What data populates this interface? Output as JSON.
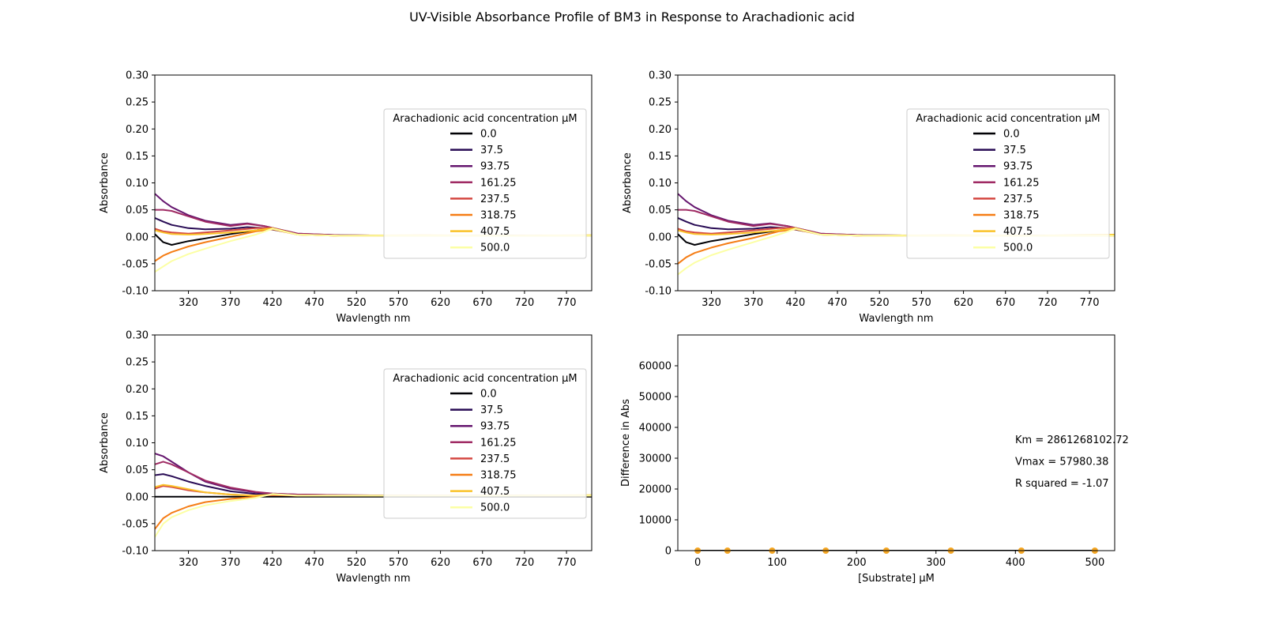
{
  "figure": {
    "title": "UV-Visible Absorbance Profile of BM3 in Response to Arachadionic acid"
  },
  "chart_data": [
    {
      "type": "line",
      "panel": "top-left",
      "xlabel": "Wavlength nm",
      "ylabel": "Absorbance",
      "xlim": [
        280,
        800
      ],
      "ylim": [
        -0.1,
        0.3
      ],
      "xticks": [
        "320",
        "370",
        "420",
        "470",
        "520",
        "570",
        "620",
        "670",
        "720",
        "770"
      ],
      "yticks": [
        "-0.10",
        "-0.05",
        "0.00",
        "0.05",
        "0.10",
        "0.15",
        "0.20",
        "0.25",
        "0.30"
      ],
      "legend": {
        "title": "Arachadionic acid concentration μM",
        "placement": "right"
      },
      "series": [
        {
          "name": "0.0",
          "color": "#000004",
          "x": [
            280,
            290,
            300,
            320,
            340,
            370,
            400,
            420,
            450,
            500,
            600,
            700,
            800
          ],
          "y": [
            0.005,
            -0.01,
            -0.015,
            -0.008,
            -0.003,
            0.005,
            0.012,
            0.016,
            0.005,
            0.002,
            0.002,
            0.002,
            0.002
          ]
        },
        {
          "name": "37.5",
          "color": "#280b54",
          "x": [
            280,
            290,
            300,
            320,
            340,
            370,
            390,
            410,
            450,
            500,
            600,
            700,
            800
          ],
          "y": [
            0.035,
            0.028,
            0.022,
            0.016,
            0.014,
            0.015,
            0.018,
            0.016,
            0.005,
            0.003,
            0.002,
            0.002,
            0.002
          ]
        },
        {
          "name": "93.75",
          "color": "#65156e",
          "x": [
            280,
            290,
            300,
            320,
            340,
            370,
            390,
            410,
            450,
            500,
            600,
            700,
            800
          ],
          "y": [
            0.08,
            0.066,
            0.055,
            0.04,
            0.03,
            0.022,
            0.025,
            0.02,
            0.006,
            0.003,
            0.002,
            0.002,
            0.002
          ]
        },
        {
          "name": "161.25",
          "color": "#9f2a63",
          "x": [
            280,
            290,
            300,
            320,
            340,
            370,
            390,
            410,
            450,
            500,
            600,
            700,
            800
          ],
          "y": [
            0.05,
            0.05,
            0.048,
            0.038,
            0.028,
            0.02,
            0.024,
            0.02,
            0.006,
            0.003,
            0.002,
            0.002,
            0.002
          ]
        },
        {
          "name": "237.5",
          "color": "#d44842",
          "x": [
            280,
            290,
            300,
            320,
            340,
            370,
            400,
            420,
            450,
            500,
            600,
            700,
            800
          ],
          "y": [
            0.015,
            0.01,
            0.008,
            0.006,
            0.008,
            0.012,
            0.016,
            0.016,
            0.004,
            0.002,
            0.002,
            0.002,
            0.002
          ]
        },
        {
          "name": "318.75",
          "color": "#f57d15",
          "x": [
            280,
            290,
            300,
            320,
            340,
            370,
            400,
            420,
            450,
            500,
            600,
            700,
            800
          ],
          "y": [
            -0.045,
            -0.035,
            -0.028,
            -0.018,
            -0.01,
            0.0,
            0.01,
            0.014,
            0.004,
            0.002,
            0.002,
            0.002,
            0.002
          ]
        },
        {
          "name": "407.5",
          "color": "#fac228",
          "x": [
            280,
            290,
            300,
            320,
            340,
            370,
            400,
            420,
            450,
            500,
            600,
            700,
            800
          ],
          "y": [
            0.012,
            0.008,
            0.005,
            0.004,
            0.005,
            0.008,
            0.012,
            0.016,
            0.004,
            0.002,
            0.003,
            0.002,
            0.003
          ]
        },
        {
          "name": "500.0",
          "color": "#fcffa4",
          "x": [
            280,
            290,
            300,
            320,
            340,
            370,
            400,
            420,
            450,
            500,
            600,
            700,
            800
          ],
          "y": [
            -0.065,
            -0.055,
            -0.045,
            -0.032,
            -0.022,
            -0.008,
            0.004,
            0.015,
            0.004,
            0.002,
            0.002,
            0.002,
            0.002
          ]
        }
      ]
    },
    {
      "type": "line",
      "panel": "top-right",
      "xlabel": "Wavlength nm",
      "ylabel": "Absorbance",
      "xlim": [
        280,
        800
      ],
      "ylim": [
        -0.1,
        0.3
      ],
      "xticks": [
        "320",
        "370",
        "420",
        "470",
        "520",
        "570",
        "620",
        "670",
        "720",
        "770"
      ],
      "yticks": [
        "-0.10",
        "-0.05",
        "0.00",
        "0.05",
        "0.10",
        "0.15",
        "0.20",
        "0.25",
        "0.30"
      ],
      "legend": {
        "title": "Arachadionic acid concentration μM",
        "placement": "right"
      },
      "series": [
        {
          "name": "0.0",
          "color": "#000004",
          "x": [
            280,
            290,
            300,
            320,
            340,
            370,
            400,
            420,
            450,
            500,
            600,
            700,
            800
          ],
          "y": [
            0.005,
            -0.01,
            -0.015,
            -0.008,
            -0.003,
            0.005,
            0.012,
            0.016,
            0.005,
            0.002,
            0.002,
            0.002,
            0.002
          ]
        },
        {
          "name": "37.5",
          "color": "#280b54",
          "x": [
            280,
            290,
            300,
            320,
            340,
            370,
            390,
            410,
            450,
            500,
            600,
            700,
            800
          ],
          "y": [
            0.035,
            0.028,
            0.022,
            0.016,
            0.014,
            0.015,
            0.018,
            0.016,
            0.005,
            0.003,
            0.002,
            0.002,
            0.002
          ]
        },
        {
          "name": "93.75",
          "color": "#65156e",
          "x": [
            280,
            290,
            300,
            320,
            340,
            370,
            390,
            410,
            450,
            500,
            600,
            700,
            800
          ],
          "y": [
            0.08,
            0.066,
            0.055,
            0.04,
            0.03,
            0.022,
            0.025,
            0.02,
            0.006,
            0.003,
            0.002,
            0.002,
            0.002
          ]
        },
        {
          "name": "161.25",
          "color": "#9f2a63",
          "x": [
            280,
            290,
            300,
            320,
            340,
            370,
            390,
            410,
            450,
            500,
            600,
            700,
            800
          ],
          "y": [
            0.05,
            0.05,
            0.048,
            0.038,
            0.028,
            0.02,
            0.024,
            0.02,
            0.006,
            0.003,
            0.002,
            0.002,
            0.002
          ]
        },
        {
          "name": "237.5",
          "color": "#d44842",
          "x": [
            280,
            290,
            300,
            320,
            340,
            370,
            400,
            420,
            450,
            500,
            600,
            700,
            800
          ],
          "y": [
            0.015,
            0.01,
            0.008,
            0.006,
            0.008,
            0.012,
            0.016,
            0.016,
            0.004,
            0.002,
            0.002,
            0.002,
            0.002
          ]
        },
        {
          "name": "318.75",
          "color": "#f57d15",
          "x": [
            280,
            290,
            300,
            320,
            340,
            370,
            400,
            420,
            450,
            500,
            600,
            700,
            800
          ],
          "y": [
            -0.05,
            -0.038,
            -0.03,
            -0.02,
            -0.012,
            -0.002,
            0.01,
            0.014,
            0.004,
            0.002,
            0.002,
            0.002,
            0.002
          ]
        },
        {
          "name": "407.5",
          "color": "#fac228",
          "x": [
            280,
            290,
            300,
            320,
            340,
            370,
            400,
            420,
            450,
            500,
            600,
            700,
            800
          ],
          "y": [
            0.012,
            0.008,
            0.005,
            0.004,
            0.005,
            0.008,
            0.012,
            0.016,
            0.004,
            0.002,
            0.003,
            0.002,
            0.004
          ]
        },
        {
          "name": "500.0",
          "color": "#fcffa4",
          "x": [
            280,
            290,
            300,
            320,
            340,
            370,
            400,
            420,
            450,
            500,
            600,
            700,
            800
          ],
          "y": [
            -0.07,
            -0.058,
            -0.048,
            -0.034,
            -0.024,
            -0.01,
            0.004,
            0.015,
            0.004,
            0.002,
            0.002,
            0.002,
            0.002
          ]
        }
      ]
    },
    {
      "type": "line",
      "panel": "bottom-left",
      "xlabel": "Wavlength nm",
      "ylabel": "Absorbance",
      "xlim": [
        280,
        800
      ],
      "ylim": [
        -0.1,
        0.3
      ],
      "xticks": [
        "320",
        "370",
        "420",
        "470",
        "520",
        "570",
        "620",
        "670",
        "720",
        "770"
      ],
      "yticks": [
        "-0.10",
        "-0.05",
        "0.00",
        "0.05",
        "0.10",
        "0.15",
        "0.20",
        "0.25",
        "0.30"
      ],
      "legend": {
        "title": "Arachadionic acid concentration μM",
        "placement": "right"
      },
      "series": [
        {
          "name": "0.0",
          "color": "#000004",
          "x": [
            280,
            400,
            500,
            600,
            700,
            800
          ],
          "y": [
            0.0,
            0.0,
            0.0,
            0.0,
            0.0,
            0.0
          ]
        },
        {
          "name": "37.5",
          "color": "#280b54",
          "x": [
            280,
            290,
            300,
            320,
            340,
            370,
            400,
            420,
            450,
            500,
            600,
            700,
            800
          ],
          "y": [
            0.04,
            0.042,
            0.038,
            0.028,
            0.02,
            0.01,
            0.005,
            0.004,
            0.002,
            0.002,
            0.002,
            0.002,
            0.002
          ]
        },
        {
          "name": "93.75",
          "color": "#65156e",
          "x": [
            280,
            290,
            300,
            320,
            340,
            370,
            400,
            420,
            450,
            500,
            600,
            700,
            800
          ],
          "y": [
            0.08,
            0.075,
            0.065,
            0.045,
            0.028,
            0.015,
            0.008,
            0.006,
            0.004,
            0.003,
            0.002,
            0.002,
            0.002
          ]
        },
        {
          "name": "161.25",
          "color": "#9f2a63",
          "x": [
            280,
            290,
            300,
            320,
            340,
            370,
            400,
            420,
            450,
            500,
            600,
            700,
            800
          ],
          "y": [
            0.06,
            0.065,
            0.06,
            0.045,
            0.03,
            0.017,
            0.009,
            0.006,
            0.004,
            0.003,
            0.002,
            0.002,
            0.002
          ]
        },
        {
          "name": "237.5",
          "color": "#d44842",
          "x": [
            280,
            290,
            300,
            320,
            340,
            370,
            400,
            420,
            450,
            500,
            600,
            700,
            800
          ],
          "y": [
            0.015,
            0.02,
            0.018,
            0.012,
            0.008,
            0.004,
            0.002,
            0.003,
            0.002,
            0.002,
            0.002,
            0.002,
            0.002
          ]
        },
        {
          "name": "318.75",
          "color": "#f57d15",
          "x": [
            280,
            290,
            300,
            320,
            340,
            370,
            400,
            420,
            450,
            500,
            600,
            700,
            800
          ],
          "y": [
            -0.06,
            -0.04,
            -0.03,
            -0.018,
            -0.01,
            -0.004,
            0.0,
            0.004,
            0.002,
            0.002,
            0.002,
            0.002,
            0.002
          ]
        },
        {
          "name": "407.5",
          "color": "#fac228",
          "x": [
            280,
            290,
            300,
            320,
            340,
            370,
            400,
            420,
            450,
            500,
            600,
            700,
            800
          ],
          "y": [
            0.018,
            0.022,
            0.02,
            0.014,
            0.008,
            0.004,
            0.002,
            0.004,
            0.002,
            0.002,
            0.002,
            0.002,
            0.003
          ]
        },
        {
          "name": "500.0",
          "color": "#fcffa4",
          "x": [
            280,
            290,
            300,
            320,
            340,
            370,
            400,
            420,
            450,
            500,
            600,
            700,
            800
          ],
          "y": [
            -0.075,
            -0.05,
            -0.038,
            -0.025,
            -0.016,
            -0.008,
            -0.002,
            0.005,
            0.002,
            0.002,
            0.002,
            0.002,
            0.002
          ]
        }
      ]
    },
    {
      "type": "scatter",
      "panel": "bottom-right",
      "xlabel": "[Substrate] μM",
      "ylabel": "Difference in Abs",
      "xlim": [
        -25,
        525
      ],
      "ylim": [
        0,
        70000
      ],
      "xticks": [
        0,
        100,
        200,
        300,
        400,
        500
      ],
      "yticks": [
        0,
        10000,
        20000,
        30000,
        40000,
        50000,
        60000
      ],
      "points": {
        "color": "#f5a623",
        "x": [
          0.0,
          37.5,
          93.75,
          161.25,
          237.5,
          318.75,
          407.5,
          500.0
        ],
        "y": [
          0,
          0,
          0,
          0,
          0,
          0,
          0,
          0
        ]
      },
      "fit_line": {
        "color": "#000000",
        "x": [
          0,
          500
        ],
        "y": [
          0,
          0
        ]
      },
      "annotations": [
        "Km = 2861268102.72",
        "Vmax = 57980.38",
        "R squared = -1.07"
      ]
    }
  ]
}
